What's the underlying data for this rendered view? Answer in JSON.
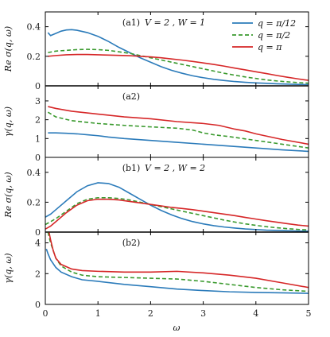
{
  "colors": {
    "q_pi12": "#2b7bba",
    "q_pi2": "#3a9a2e",
    "q_pi": "#d62728"
  },
  "chart_data": {
    "type": "line",
    "x_label": "ω",
    "xlim": [
      0,
      5
    ],
    "x_ticks": [
      "0",
      "1",
      "2",
      "3",
      "4",
      "5"
    ],
    "legend": [
      "q = π/12",
      "q = π/2",
      "q = π"
    ],
    "legend_position": "top-right",
    "grid": false,
    "panels": [
      {
        "id": "a1",
        "tag": "(a1)",
        "title": "V = 2 , W = 1",
        "ylabel": "Re σ(q, ω)",
        "ylim": [
          0,
          0.5
        ],
        "y_ticks": [
          "0",
          "0.2",
          "0.4"
        ],
        "y_tick_values": [
          0,
          0.2,
          0.4
        ],
        "series": [
          {
            "name": "q = π/12",
            "x": [
              0.05,
              0.1,
              0.2,
              0.3,
              0.4,
              0.5,
              0.6,
              0.8,
              1.0,
              1.2,
              1.4,
              1.6,
              1.8,
              2.0,
              2.2,
              2.4,
              2.6,
              2.8,
              3.0,
              3.2,
              3.4,
              3.6,
              3.8,
              4.0,
              4.2,
              4.4,
              4.6,
              4.8,
              5.0
            ],
            "y": [
              0.36,
              0.34,
              0.355,
              0.37,
              0.378,
              0.38,
              0.376,
              0.36,
              0.335,
              0.3,
              0.26,
              0.225,
              0.19,
              0.16,
              0.13,
              0.105,
              0.085,
              0.068,
              0.055,
              0.044,
              0.036,
              0.029,
              0.024,
              0.02,
              0.017,
              0.014,
              0.012,
              0.01,
              0.008
            ]
          },
          {
            "name": "q = π/2",
            "x": [
              0.05,
              0.2,
              0.4,
              0.6,
              0.8,
              1.0,
              1.2,
              1.4,
              1.6,
              1.8,
              2.0,
              2.2,
              2.4,
              2.6,
              2.8,
              3.0,
              3.2,
              3.4,
              3.6,
              3.8,
              4.0,
              4.2,
              4.4,
              4.6,
              4.8,
              5.0
            ],
            "y": [
              0.225,
              0.235,
              0.24,
              0.245,
              0.247,
              0.245,
              0.24,
              0.23,
              0.22,
              0.205,
              0.19,
              0.175,
              0.16,
              0.145,
              0.13,
              0.115,
              0.1,
              0.085,
              0.072,
              0.06,
              0.05,
              0.04,
              0.033,
              0.027,
              0.022,
              0.018
            ]
          },
          {
            "name": "q = π",
            "x": [
              0.05,
              0.2,
              0.4,
              0.6,
              0.8,
              1.0,
              1.2,
              1.4,
              1.6,
              1.8,
              2.0,
              2.2,
              2.4,
              2.6,
              2.8,
              3.0,
              3.2,
              3.4,
              3.6,
              3.8,
              4.0,
              4.2,
              4.4,
              4.6,
              4.8,
              5.0
            ],
            "y": [
              0.2,
              0.205,
              0.21,
              0.212,
              0.212,
              0.21,
              0.208,
              0.206,
              0.204,
              0.2,
              0.196,
              0.19,
              0.182,
              0.174,
              0.165,
              0.155,
              0.145,
              0.133,
              0.12,
              0.108,
              0.095,
              0.083,
              0.07,
              0.058,
              0.047,
              0.037
            ]
          }
        ]
      },
      {
        "id": "a2",
        "tag": "(a2)",
        "title": "",
        "ylabel": "γ(q, ω)",
        "ylim": [
          0,
          3.8
        ],
        "y_ticks": [
          "0",
          "1",
          "2",
          "3"
        ],
        "y_tick_values": [
          0,
          1,
          2,
          3
        ],
        "series": [
          {
            "name": "q = π/12",
            "x": [
              0.05,
              0.2,
              0.4,
              0.6,
              0.8,
              1.0,
              1.2,
              1.5,
              2.0,
              2.5,
              3.0,
              3.5,
              4.0,
              4.5,
              5.0
            ],
            "y": [
              1.3,
              1.3,
              1.28,
              1.25,
              1.2,
              1.15,
              1.08,
              1.0,
              0.9,
              0.8,
              0.7,
              0.6,
              0.5,
              0.4,
              0.32
            ]
          },
          {
            "name": "q = π/2",
            "x": [
              0.05,
              0.2,
              0.5,
              1.0,
              1.5,
              2.0,
              2.5,
              2.8,
              3.0,
              3.2,
              3.5,
              4.0,
              4.5,
              5.0
            ],
            "y": [
              2.4,
              2.15,
              1.95,
              1.8,
              1.7,
              1.62,
              1.55,
              1.45,
              1.3,
              1.2,
              1.1,
              0.9,
              0.7,
              0.5
            ]
          },
          {
            "name": "q = π",
            "x": [
              0.05,
              0.2,
              0.5,
              1.0,
              1.5,
              2.0,
              2.5,
              3.0,
              3.3,
              3.6,
              3.8,
              4.0,
              4.5,
              5.0
            ],
            "y": [
              2.7,
              2.6,
              2.45,
              2.3,
              2.15,
              2.05,
              1.9,
              1.8,
              1.7,
              1.5,
              1.4,
              1.25,
              0.95,
              0.7
            ]
          }
        ]
      },
      {
        "id": "b1",
        "tag": "(b1)",
        "title": "V = 2 , W = 2",
        "ylabel": "Re σ(q, ω)",
        "ylim": [
          0,
          0.5
        ],
        "y_ticks": [
          "0",
          "0.2",
          "0.4"
        ],
        "y_tick_values": [
          0,
          0.2,
          0.4
        ],
        "series": [
          {
            "name": "q = π/12",
            "x": [
              0.0,
              0.1,
              0.2,
              0.4,
              0.6,
              0.8,
              1.0,
              1.2,
              1.4,
              1.6,
              1.8,
              2.0,
              2.2,
              2.4,
              2.6,
              2.8,
              3.0,
              3.2,
              3.4,
              3.6,
              3.8,
              4.0,
              4.2,
              4.4,
              4.6,
              4.8,
              5.0
            ],
            "y": [
              0.1,
              0.12,
              0.15,
              0.21,
              0.27,
              0.31,
              0.33,
              0.325,
              0.3,
              0.26,
              0.22,
              0.18,
              0.145,
              0.115,
              0.09,
              0.07,
              0.055,
              0.043,
              0.034,
              0.027,
              0.021,
              0.017,
              0.013,
              0.011,
              0.009,
              0.007,
              0.006
            ]
          },
          {
            "name": "q = π/2",
            "x": [
              0.0,
              0.1,
              0.2,
              0.4,
              0.6,
              0.8,
              1.0,
              1.2,
              1.4,
              1.6,
              1.8,
              2.0,
              2.2,
              2.4,
              2.6,
              2.8,
              3.0,
              3.2,
              3.4,
              3.6,
              3.8,
              4.0,
              4.2,
              4.4,
              4.6,
              4.8,
              5.0
            ],
            "y": [
              0.05,
              0.07,
              0.09,
              0.14,
              0.19,
              0.22,
              0.23,
              0.23,
              0.225,
              0.215,
              0.2,
              0.185,
              0.17,
              0.155,
              0.14,
              0.125,
              0.11,
              0.095,
              0.08,
              0.067,
              0.055,
              0.045,
              0.036,
              0.029,
              0.023,
              0.018,
              0.014
            ]
          },
          {
            "name": "q = π",
            "x": [
              0.0,
              0.1,
              0.2,
              0.4,
              0.6,
              0.8,
              1.0,
              1.2,
              1.4,
              1.6,
              1.8,
              2.0,
              2.2,
              2.4,
              2.6,
              2.8,
              3.0,
              3.2,
              3.4,
              3.6,
              3.8,
              4.0,
              4.2,
              4.4,
              4.6,
              4.8,
              5.0
            ],
            "y": [
              0.02,
              0.04,
              0.07,
              0.13,
              0.18,
              0.21,
              0.22,
              0.22,
              0.215,
              0.205,
              0.195,
              0.185,
              0.175,
              0.165,
              0.158,
              0.15,
              0.14,
              0.13,
              0.12,
              0.11,
              0.098,
              0.087,
              0.076,
              0.066,
              0.056,
              0.047,
              0.04
            ]
          }
        ]
      },
      {
        "id": "b2",
        "tag": "(b2)",
        "title": "",
        "ylabel": "γ(q, ω)",
        "ylim": [
          0,
          4.7
        ],
        "y_ticks": [
          "0",
          "2",
          "4"
        ],
        "y_tick_values": [
          0,
          2,
          4
        ],
        "series": [
          {
            "name": "q = π/12",
            "x": [
              0.02,
              0.05,
              0.1,
              0.2,
              0.3,
              0.5,
              0.7,
              1.0,
              1.5,
              2.0,
              2.5,
              3.0,
              3.5,
              4.0,
              4.5,
              5.0
            ],
            "y": [
              3.6,
              3.3,
              2.9,
              2.4,
              2.1,
              1.8,
              1.6,
              1.5,
              1.3,
              1.15,
              1.0,
              0.9,
              0.82,
              0.78,
              0.75,
              0.72
            ]
          },
          {
            "name": "q = π/2",
            "x": [
              0.05,
              0.1,
              0.2,
              0.3,
              0.5,
              0.7,
              1.0,
              1.5,
              2.0,
              2.5,
              3.0,
              3.5,
              4.0,
              4.5,
              5.0
            ],
            "y": [
              4.7,
              4.0,
              3.0,
              2.5,
              2.1,
              1.9,
              1.8,
              1.75,
              1.7,
              1.65,
              1.5,
              1.3,
              1.1,
              0.95,
              0.85
            ]
          },
          {
            "name": "q = π",
            "x": [
              0.07,
              0.1,
              0.15,
              0.2,
              0.3,
              0.5,
              0.7,
              1.0,
              1.5,
              2.0,
              2.5,
              3.0,
              3.5,
              4.0,
              4.5,
              5.0
            ],
            "y": [
              4.7,
              4.2,
              3.5,
              3.0,
              2.6,
              2.3,
              2.2,
              2.15,
              2.1,
              2.1,
              2.15,
              2.05,
              1.9,
              1.7,
              1.4,
              1.1
            ]
          }
        ]
      }
    ]
  }
}
